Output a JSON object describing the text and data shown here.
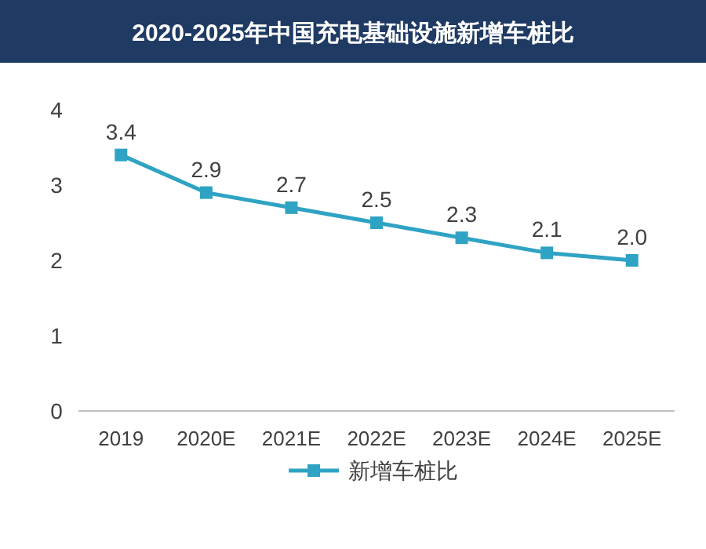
{
  "chart_data": {
    "type": "line",
    "title": "2020-2025年中国充电基础设施新增车桩比",
    "categories": [
      "2019",
      "2020E",
      "2021E",
      "2022E",
      "2023E",
      "2024E",
      "2025E"
    ],
    "series": [
      {
        "name": "新增车桩比",
        "color": "#2fa3c4",
        "values": [
          3.4,
          2.9,
          2.7,
          2.5,
          2.3,
          2.1,
          2.0
        ],
        "value_labels": [
          "3.4",
          "2.9",
          "2.7",
          "2.5",
          "2.3",
          "2.1",
          "2.0"
        ]
      }
    ],
    "ylim": [
      0,
      4
    ],
    "yticks": [
      0,
      1,
      2,
      3,
      4
    ],
    "marker": "square",
    "legend": "bottom"
  }
}
